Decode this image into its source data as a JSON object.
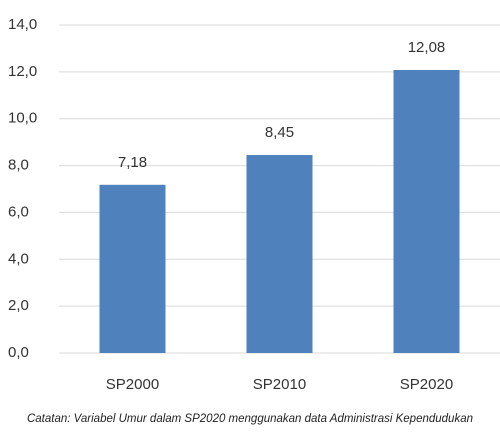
{
  "chart_data": {
    "type": "bar",
    "categories": [
      "SP2000",
      "SP2010",
      "SP2020"
    ],
    "values": [
      7.18,
      8.45,
      12.08
    ],
    "value_labels": [
      "7,18",
      "8,45",
      "12,08"
    ],
    "color": "#4f81bd",
    "ylim": [
      0,
      14
    ],
    "yticks": [
      {
        "value": 0,
        "label": "0,0"
      },
      {
        "value": 2,
        "label": "2,0"
      },
      {
        "value": 4,
        "label": "4,0"
      },
      {
        "value": 6,
        "label": "6,0"
      },
      {
        "value": 8,
        "label": "8,0"
      },
      {
        "value": 10,
        "label": "10,0"
      },
      {
        "value": 12,
        "label": "12,0"
      },
      {
        "value": 14,
        "label": "14,0"
      }
    ],
    "grid": true,
    "note": "Catatan: Variabel Umur dalam SP2020 menggunakan data Administrasi Kependudukan"
  }
}
